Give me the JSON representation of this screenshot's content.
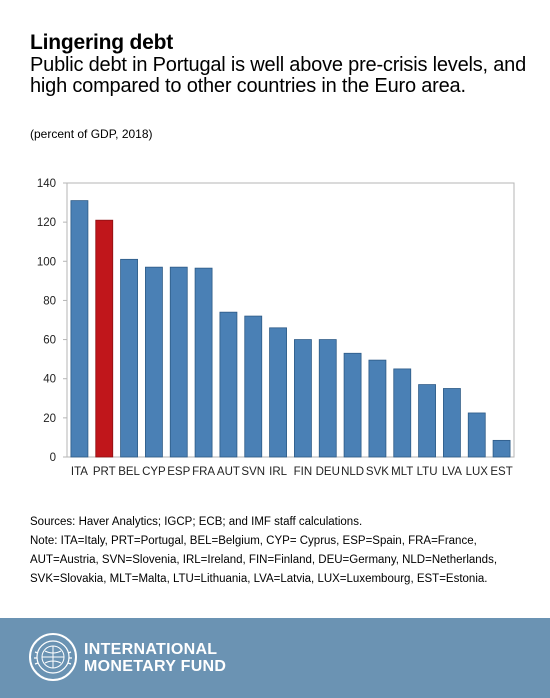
{
  "header": {
    "title": "Lingering debt",
    "subtitle": "Public debt in Portugal is well above pre-crisis levels, and high compared to other countries in the Euro area.",
    "units": "(percent of GDP, 2018)"
  },
  "chart_data": {
    "type": "bar",
    "categories": [
      "ITA",
      "PRT",
      "BEL",
      "CYP",
      "ESP",
      "FRA",
      "AUT",
      "SVN",
      "IRL",
      "FIN",
      "DEU",
      "NLD",
      "SVK",
      "MLT",
      "LTU",
      "LVA",
      "LUX",
      "EST"
    ],
    "values": [
      131,
      121,
      101,
      97,
      97,
      96.5,
      74,
      72,
      66,
      60,
      60,
      53,
      49.5,
      45,
      37,
      35,
      22.5,
      8.5
    ],
    "highlight": "PRT",
    "colors": {
      "default": "#4a80b5",
      "highlight": "#c0161b"
    },
    "ylim": [
      0,
      140
    ],
    "yticks": [
      0,
      20,
      40,
      60,
      80,
      100,
      120,
      140
    ],
    "grid": false,
    "xlabel": "",
    "ylabel": ""
  },
  "notes": {
    "sources": "Sources: Haver Analytics; IGCP; ECB; and IMF staff calculations.",
    "note": "Note: ITA=Italy, PRT=Portugal, BEL=Belgium, CYP= Cyprus, ESP=Spain, FRA=France, AUT=Austria, SVN=Slovenia, IRL=Ireland, FIN=Finland, DEU=Germany, NLD=Netherlands, SVK=Slovakia, MLT=Malta, LTU=Lithuania, LVA=Latvia, LUX=Luxembourg, EST=Estonia."
  },
  "footer": {
    "line1": "INTERNATIONAL",
    "line2": "MONETARY FUND",
    "background": "#6b93b3",
    "logo_icon": "imf-seal-icon",
    "logo_text": "INTERNATIONAL MONETARY FUND"
  }
}
